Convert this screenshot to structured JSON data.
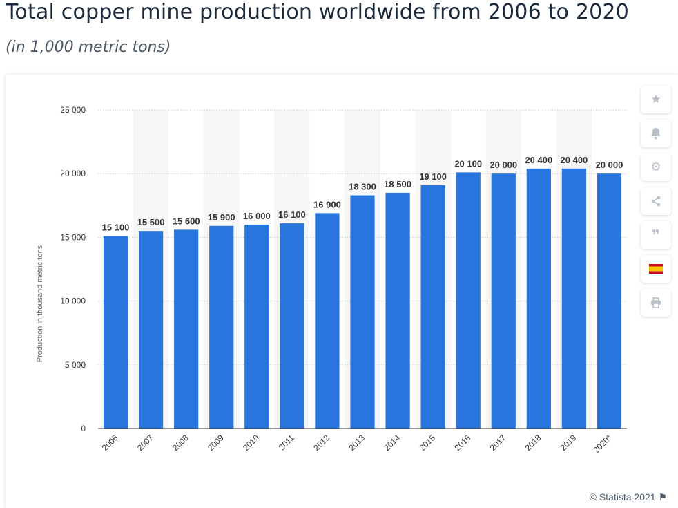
{
  "header": {
    "title": "Total copper mine production worldwide from 2006 to 2020",
    "subtitle": "(in 1,000 metric tons)"
  },
  "toolbar": {
    "icons": [
      "star-icon",
      "bell-icon",
      "gear-icon",
      "share-icon",
      "quote-icon",
      "flag-icon",
      "print-icon"
    ],
    "icon_color": "#b9c0c9"
  },
  "footer": {
    "credit": "© Statista 2021"
  },
  "chart_data": {
    "type": "bar",
    "categories": [
      "2006",
      "2007",
      "2008",
      "2009",
      "2010",
      "2011",
      "2012",
      "2013",
      "2014",
      "2015",
      "2016",
      "2017",
      "2018",
      "2019",
      "2020*"
    ],
    "values": [
      15100,
      15500,
      15600,
      15900,
      16000,
      16100,
      16900,
      18300,
      18500,
      19100,
      20100,
      20000,
      20400,
      20400,
      20000
    ],
    "value_labels": [
      "15 100",
      "15 500",
      "15 600",
      "15 900",
      "16 000",
      "16 100",
      "16 900",
      "18 300",
      "18 500",
      "19 100",
      "20 100",
      "20 000",
      "20 400",
      "20 400",
      "20 000"
    ],
    "ylabel": "Production in thousand metric tons",
    "ylim": [
      0,
      25000
    ],
    "yticks": [
      0,
      5000,
      10000,
      15000,
      20000,
      25000
    ],
    "ytick_labels": [
      "0",
      "5 000",
      "10 000",
      "15 000",
      "20 000",
      "25 000"
    ],
    "bar_color": "#2876dd",
    "grid": true
  }
}
